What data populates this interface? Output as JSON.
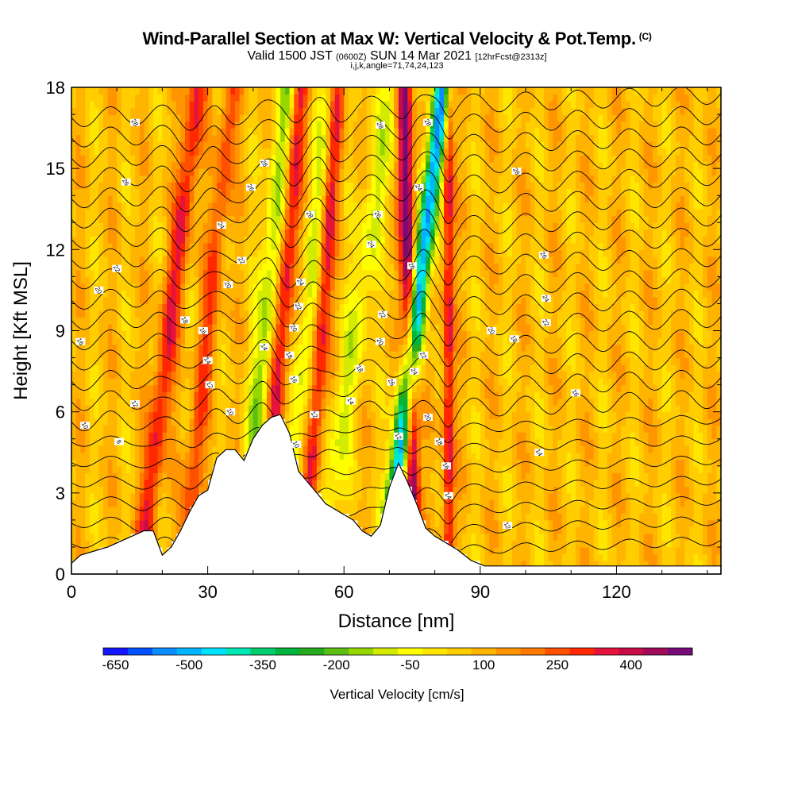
{
  "title": {
    "main": "Wind-Parallel Section at Max W: Vertical Velocity & Pot.Temp.",
    "copyright": "(C)",
    "valid_prefix": "Valid 1500 JST",
    "valid_utc": "(0600Z)",
    "valid_date": "SUN 14 Mar 2021",
    "forecast": "[12hrFcst@2313z]",
    "indices": "i,j,k,angle=71,74,24,123"
  },
  "chart_data": {
    "type": "heatmap",
    "xlabel": "Distance [nm]",
    "ylabel": "Height [Kft MSL]",
    "xlim": [
      0,
      143
    ],
    "ylim": [
      0,
      18
    ],
    "x_ticks": [
      0,
      30,
      60,
      90,
      120
    ],
    "x_tick_labels": [
      "0",
      "30",
      "60",
      "90",
      "120"
    ],
    "y_ticks": [
      0,
      3,
      6,
      9,
      12,
      15,
      18
    ],
    "y_tick_labels": [
      "0",
      "3",
      "6",
      "9",
      "12",
      "15",
      "18"
    ],
    "colorbar": {
      "label": "Vertical Velocity [cm/s]",
      "tick_labels": [
        "-650",
        "-500",
        "-350",
        "-200",
        "-50",
        "100",
        "250",
        "400"
      ],
      "colors": [
        "#1414ff",
        "#0050ff",
        "#0a8cff",
        "#00b4ff",
        "#00e1ff",
        "#00e6b4",
        "#00cd6e",
        "#00b43c",
        "#28aa1e",
        "#5abe14",
        "#96d700",
        "#d2eb00",
        "#ffff00",
        "#ffe600",
        "#ffcd00",
        "#ffb400",
        "#ff9600",
        "#ff7800",
        "#ff5000",
        "#ff2800",
        "#e6143c",
        "#c80a46",
        "#a00a5a",
        "#780a78"
      ]
    },
    "terrain": [
      [
        0,
        0.4
      ],
      [
        2,
        0.7
      ],
      [
        8,
        1.0
      ],
      [
        12,
        1.3
      ],
      [
        16,
        1.6
      ],
      [
        18,
        1.6
      ],
      [
        20,
        0.7
      ],
      [
        22,
        1.0
      ],
      [
        24,
        1.6
      ],
      [
        26,
        2.3
      ],
      [
        28,
        2.9
      ],
      [
        30,
        3.1
      ],
      [
        32,
        4.3
      ],
      [
        34,
        4.6
      ],
      [
        36,
        4.6
      ],
      [
        38,
        4.2
      ],
      [
        40,
        5.0
      ],
      [
        42,
        5.5
      ],
      [
        44,
        5.8
      ],
      [
        46,
        5.9
      ],
      [
        48,
        5.2
      ],
      [
        50,
        3.8
      ],
      [
        52,
        3.4
      ],
      [
        54,
        3.0
      ],
      [
        56,
        2.6
      ],
      [
        58,
        2.4
      ],
      [
        60,
        2.2
      ],
      [
        62,
        2.0
      ],
      [
        64,
        1.6
      ],
      [
        66,
        1.4
      ],
      [
        68,
        1.8
      ],
      [
        70,
        3.2
      ],
      [
        72,
        4.1
      ],
      [
        74,
        3.4
      ],
      [
        76,
        2.6
      ],
      [
        78,
        1.7
      ],
      [
        80,
        1.4
      ],
      [
        82,
        1.2
      ],
      [
        85,
        0.9
      ],
      [
        88,
        0.5
      ],
      [
        91,
        0.3
      ],
      [
        100,
        0.3
      ],
      [
        110,
        0.3
      ],
      [
        143,
        0.3
      ]
    ],
    "updraft_bands": [
      {
        "x_base": 18,
        "slope": 0.7,
        "width": 2.2,
        "w": 260
      },
      {
        "x_base": 27,
        "slope": 0.6,
        "width": 2.0,
        "w": 200
      },
      {
        "x_base": 44,
        "slope": 0.45,
        "width": 2.0,
        "w": 300
      },
      {
        "x_base": 53,
        "slope": 0.4,
        "width": 1.8,
        "w": 280
      },
      {
        "x_base": 75,
        "slope": -0.12,
        "width": 1.6,
        "w": 460
      },
      {
        "x_base": 83,
        "slope": 0.0,
        "width": 1.2,
        "w": 300
      }
    ],
    "downdraft_bands": [
      {
        "x_base": 40,
        "slope": 0.55,
        "width": 2.4,
        "w": -230
      },
      {
        "x_base": 49,
        "slope": 0.55,
        "width": 2.2,
        "w": -170
      },
      {
        "x_base": 58,
        "slope": 0.9,
        "width": 2.8,
        "w": -150
      },
      {
        "x_base": 72,
        "slope": 0.7,
        "width": 2.0,
        "w": -620
      }
    ],
    "isentrope_labels": [
      {
        "text": "28",
        "x": 14,
        "y": 16.7
      },
      {
        "text": "26",
        "x": 12,
        "y": 14.5
      },
      {
        "text": "22",
        "x": 10,
        "y": 11.3
      },
      {
        "text": "20",
        "x": 6,
        "y": 10.5
      },
      {
        "text": "16",
        "x": 2,
        "y": 8.6
      },
      {
        "text": "10",
        "x": 3,
        "y": 5.5
      },
      {
        "text": "8",
        "x": 10.5,
        "y": 4.9
      },
      {
        "text": "12",
        "x": 14,
        "y": 6.3
      },
      {
        "text": "18",
        "x": 25,
        "y": 9.4
      },
      {
        "text": "16",
        "x": 29,
        "y": 9.0
      },
      {
        "text": "14",
        "x": 30,
        "y": 7.9
      },
      {
        "text": "12",
        "x": 30.5,
        "y": 7.0
      },
      {
        "text": "10",
        "x": 35,
        "y": 6.0
      },
      {
        "text": "24",
        "x": 33,
        "y": 12.9
      },
      {
        "text": "22",
        "x": 37.5,
        "y": 11.6
      },
      {
        "text": "20",
        "x": 34.5,
        "y": 10.7
      },
      {
        "text": "26",
        "x": 39.5,
        "y": 14.3
      },
      {
        "text": "28",
        "x": 42.5,
        "y": 15.2
      },
      {
        "text": "14",
        "x": 42.5,
        "y": 8.4
      },
      {
        "text": "28",
        "x": 52.5,
        "y": 13.3
      },
      {
        "text": "24",
        "x": 50.5,
        "y": 10.8
      },
      {
        "text": "22",
        "x": 50,
        "y": 9.9
      },
      {
        "text": "20",
        "x": 49,
        "y": 9.1
      },
      {
        "text": "18",
        "x": 48,
        "y": 8.1
      },
      {
        "text": "16",
        "x": 49,
        "y": 7.2
      },
      {
        "text": "12",
        "x": 53.5,
        "y": 5.9
      },
      {
        "text": "10",
        "x": 49.5,
        "y": 4.8
      },
      {
        "text": "14",
        "x": 61.5,
        "y": 6.4
      },
      {
        "text": "18",
        "x": 63.5,
        "y": 7.6
      },
      {
        "text": "20",
        "x": 68,
        "y": 8.6
      },
      {
        "text": "22",
        "x": 68.5,
        "y": 9.6
      },
      {
        "text": "24",
        "x": 66,
        "y": 12.2
      },
      {
        "text": "26",
        "x": 67.5,
        "y": 13.3
      },
      {
        "text": "28",
        "x": 68,
        "y": 16.6
      },
      {
        "text": "26",
        "x": 70.5,
        "y": 7.1
      },
      {
        "text": "12",
        "x": 72,
        "y": 5.1
      },
      {
        "text": "26",
        "x": 75,
        "y": 11.4
      },
      {
        "text": "24",
        "x": 76.5,
        "y": 14.3
      },
      {
        "text": "28",
        "x": 78.5,
        "y": 16.7
      },
      {
        "text": "24",
        "x": 75.5,
        "y": 7.5
      },
      {
        "text": "22",
        "x": 77.5,
        "y": 8.1
      },
      {
        "text": "20",
        "x": 78.5,
        "y": 5.8
      },
      {
        "text": "18",
        "x": 81,
        "y": 4.9
      },
      {
        "text": "16",
        "x": 82.5,
        "y": 4.0
      },
      {
        "text": "14",
        "x": 83,
        "y": 2.9
      },
      {
        "text": "12",
        "x": 96,
        "y": 1.8
      },
      {
        "text": "14",
        "x": 103,
        "y": 4.5
      },
      {
        "text": "16",
        "x": 111,
        "y": 6.7
      },
      {
        "text": "18",
        "x": 97.5,
        "y": 8.7
      },
      {
        "text": "20",
        "x": 92.5,
        "y": 9.0
      },
      {
        "text": "22",
        "x": 104.5,
        "y": 9.3
      },
      {
        "text": "24",
        "x": 104.5,
        "y": 10.2
      },
      {
        "text": "26",
        "x": 104,
        "y": 11.8
      },
      {
        "text": "28",
        "x": 98,
        "y": 14.9
      }
    ]
  }
}
